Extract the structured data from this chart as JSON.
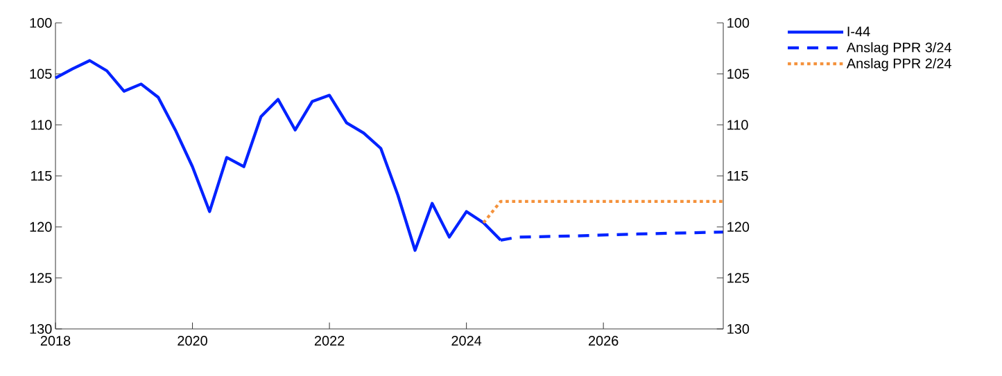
{
  "chart_data": {
    "type": "line",
    "xlim": [
      2018,
      2027.75
    ],
    "xticks": [
      2018,
      2020,
      2022,
      2024,
      2026
    ],
    "ylim": [
      130,
      100
    ],
    "yticks": [
      100,
      105,
      110,
      115,
      120,
      125,
      130
    ],
    "y2lim": [
      130,
      100
    ],
    "y2ticks": [
      100,
      105,
      110,
      115,
      120,
      125,
      130
    ],
    "legend": "right",
    "grid": false,
    "series": [
      {
        "name": "I-44",
        "color": "#0022ff",
        "line_style": "solid",
        "x": [
          2018,
          2018.25,
          2018.5,
          2018.75,
          2019,
          2019.25,
          2019.5,
          2019.75,
          2020,
          2020.25,
          2020.5,
          2020.75,
          2021,
          2021.25,
          2021.5,
          2021.75,
          2022,
          2022.25,
          2022.5,
          2022.75,
          2023,
          2023.25,
          2023.5,
          2023.75,
          2024,
          2024.25,
          2024.5
        ],
        "values": [
          105.4,
          104.5,
          103.7,
          104.7,
          106.7,
          106.0,
          107.3,
          110.5,
          114.1,
          118.5,
          113.2,
          114.1,
          109.2,
          107.5,
          110.5,
          107.7,
          107.1,
          109.8,
          110.8,
          112.3,
          116.9,
          122.3,
          117.7,
          121.0,
          118.5,
          119.6,
          121.3
        ]
      },
      {
        "name": "Anslag PPR 3/24",
        "color": "#0022ff",
        "line_style": "dashed",
        "x": [
          2024.5,
          2024.75,
          2025.5,
          2026.5,
          2027.75
        ],
        "values": [
          121.3,
          121.0,
          120.9,
          120.7,
          120.5
        ]
      },
      {
        "name": "Anslag PPR 2/24",
        "color": "#f4923c",
        "line_style": "dotted",
        "x": [
          2024.25,
          2024.5,
          2027.75
        ],
        "values": [
          119.6,
          117.5,
          117.5
        ]
      }
    ]
  }
}
